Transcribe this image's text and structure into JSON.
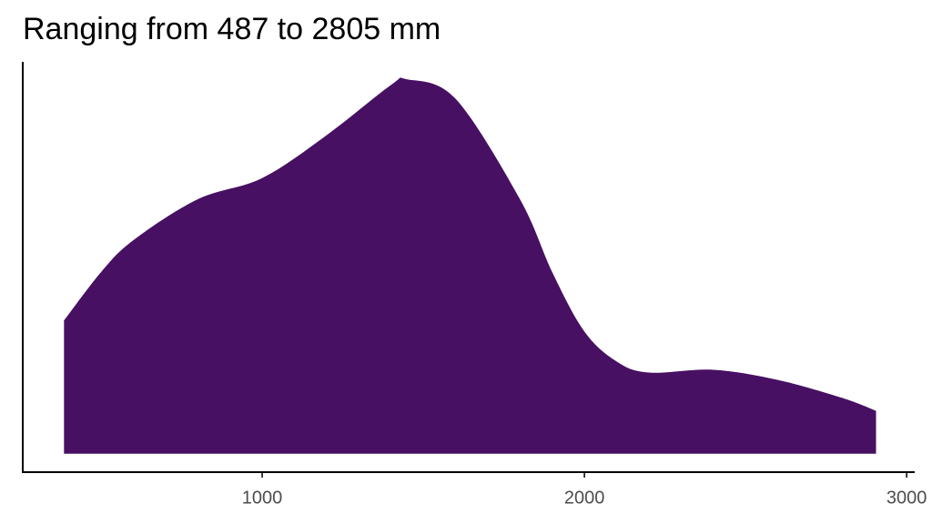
{
  "chart_data": {
    "type": "density",
    "title": "Ranging from 487 to 2805 mm",
    "x": [
      385,
      500,
      600,
      800,
      1000,
      1200,
      1400,
      1450,
      1600,
      1800,
      1900,
      2000,
      2100,
      2200,
      2400,
      2600,
      2800,
      2905
    ],
    "values": [
      0.000289,
      0.000394,
      0.000463,
      0.000552,
      0.000598,
      0.000691,
      0.0008,
      0.000812,
      0.00077,
      0.000552,
      0.000394,
      0.000265,
      0.0002,
      0.000176,
      0.000182,
      0.00016,
      0.000121,
      9.3e-05
    ],
    "color": "#471063",
    "xlim": [
      257,
      3025
    ],
    "xticks": [
      1000,
      2000,
      3000
    ],
    "ylim": [
      -4e-05,
      0.00085
    ]
  }
}
